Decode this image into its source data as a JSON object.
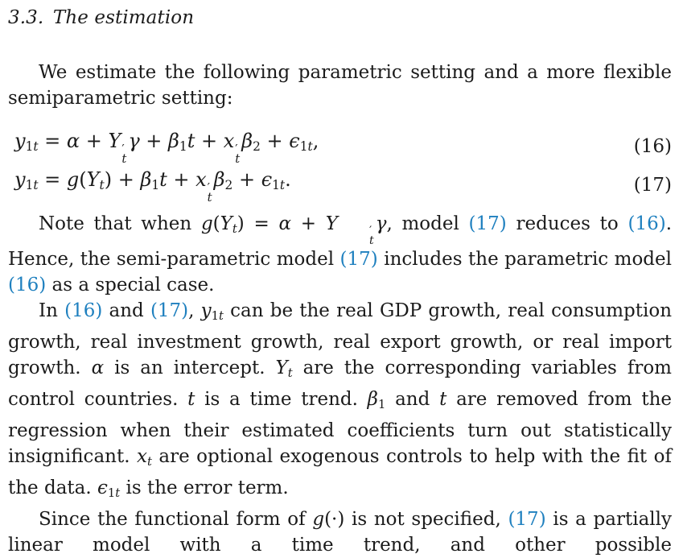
{
  "page": {
    "background": "#ffffff",
    "text_color": "#1b1b1b",
    "link_color": "#1f80bf"
  },
  "heading": "3.3. The estimation",
  "equations": [
    {
      "number": "(16)",
      "tokens": [
        {
          "k": "v",
          "t": "y"
        },
        {
          "k": "sub",
          "t": "1t"
        },
        {
          "k": "o",
          "t": " = "
        },
        {
          "k": "v",
          "t": "α"
        },
        {
          "k": "o",
          "t": " + "
        },
        {
          "k": "v",
          "t": "Y"
        },
        {
          "k": "ss",
          "sup": "′",
          "sub": "t"
        },
        {
          "k": "v",
          "t": "γ"
        },
        {
          "k": "o",
          "t": " + "
        },
        {
          "k": "v",
          "t": "β"
        },
        {
          "k": "sub",
          "t": "1"
        },
        {
          "k": "v",
          "t": "t"
        },
        {
          "k": "o",
          "t": " + "
        },
        {
          "k": "v",
          "t": "x"
        },
        {
          "k": "ss",
          "sup": "′",
          "sub": "t"
        },
        {
          "k": "v",
          "t": "β"
        },
        {
          "k": "sub",
          "t": "2"
        },
        {
          "k": "o",
          "t": " + "
        },
        {
          "k": "v",
          "t": "ϵ"
        },
        {
          "k": "sub",
          "t": "1t"
        },
        {
          "k": "o",
          "t": ","
        }
      ]
    },
    {
      "number": "(17)",
      "tokens": [
        {
          "k": "v",
          "t": "y"
        },
        {
          "k": "sub",
          "t": "1t"
        },
        {
          "k": "o",
          "t": " = "
        },
        {
          "k": "v",
          "t": "g"
        },
        {
          "k": "o",
          "t": "("
        },
        {
          "k": "v",
          "t": "Y"
        },
        {
          "k": "sub",
          "t": "t"
        },
        {
          "k": "o",
          "t": ")"
        },
        {
          "k": "o",
          "t": " + "
        },
        {
          "k": "v",
          "t": "β"
        },
        {
          "k": "sub",
          "t": "1"
        },
        {
          "k": "v",
          "t": "t"
        },
        {
          "k": "o",
          "t": " + "
        },
        {
          "k": "v",
          "t": "x"
        },
        {
          "k": "ss",
          "sup": "′",
          "sub": "t"
        },
        {
          "k": "v",
          "t": "β"
        },
        {
          "k": "sub",
          "t": "2"
        },
        {
          "k": "o",
          "t": " + "
        },
        {
          "k": "v",
          "t": "ϵ"
        },
        {
          "k": "sub",
          "t": "1t"
        },
        {
          "k": "o",
          "t": "."
        }
      ]
    }
  ],
  "paragraphs": {
    "p1": {
      "segments": [
        {
          "k": "text",
          "t": "We estimate the following parametric setting and a more flexible semiparametric setting:"
        }
      ]
    },
    "p2": {
      "segments": [
        {
          "k": "text",
          "t": "Note that when "
        },
        {
          "k": "math",
          "tokens": [
            {
              "k": "v",
              "t": "g"
            },
            {
              "k": "o",
              "t": "("
            },
            {
              "k": "v",
              "t": "Y"
            },
            {
              "k": "sub",
              "t": "t"
            },
            {
              "k": "o",
              "t": ")"
            },
            {
              "k": "o",
              "t": " = "
            },
            {
              "k": "v",
              "t": "α"
            },
            {
              "k": "o",
              "t": " + "
            },
            {
              "k": "v",
              "t": "Y"
            },
            {
              "k": "ss",
              "sup": "′",
              "sub": "t"
            },
            {
              "k": "v",
              "t": "γ"
            }
          ]
        },
        {
          "k": "text",
          "t": ", model "
        },
        {
          "k": "ref",
          "t": "(17)"
        },
        {
          "k": "text",
          "t": " reduces to "
        },
        {
          "k": "ref",
          "t": "(16)"
        },
        {
          "k": "text",
          "t": ". Hence, the semi-parametric model "
        },
        {
          "k": "ref",
          "t": "(17)"
        },
        {
          "k": "text",
          "t": " includes the parametric model "
        },
        {
          "k": "ref",
          "t": "(16)"
        },
        {
          "k": "text",
          "t": " as a special case."
        }
      ]
    },
    "p3": {
      "segments": [
        {
          "k": "text",
          "t": "In "
        },
        {
          "k": "ref",
          "t": "(16)"
        },
        {
          "k": "text",
          "t": " and "
        },
        {
          "k": "ref",
          "t": "(17)"
        },
        {
          "k": "text",
          "t": ", "
        },
        {
          "k": "math",
          "tokens": [
            {
              "k": "v",
              "t": "y"
            },
            {
              "k": "sub",
              "t": "1t"
            }
          ]
        },
        {
          "k": "text",
          "t": " can be the real GDP growth, real consumption growth, real investment growth, real export growth, or real import growth. "
        },
        {
          "k": "math",
          "tokens": [
            {
              "k": "v",
              "t": "α"
            }
          ]
        },
        {
          "k": "text",
          "t": " is an intercept. "
        },
        {
          "k": "math",
          "tokens": [
            {
              "k": "v",
              "t": "Y"
            },
            {
              "k": "sub",
              "t": "t"
            }
          ]
        },
        {
          "k": "text",
          "t": " are the corresponding variables from control countries. "
        },
        {
          "k": "math",
          "tokens": [
            {
              "k": "v",
              "t": "t"
            }
          ]
        },
        {
          "k": "text",
          "t": " is a time trend. "
        },
        {
          "k": "math",
          "tokens": [
            {
              "k": "v",
              "t": "β"
            },
            {
              "k": "sub",
              "t": "1"
            }
          ]
        },
        {
          "k": "text",
          "t": " and "
        },
        {
          "k": "math",
          "tokens": [
            {
              "k": "v",
              "t": "t"
            }
          ]
        },
        {
          "k": "text",
          "t": " are removed from the regression when their estimated coefficients turn out statistically insignificant. "
        },
        {
          "k": "math",
          "tokens": [
            {
              "k": "v",
              "t": "x"
            },
            {
              "k": "sub",
              "t": "t"
            }
          ]
        },
        {
          "k": "text",
          "t": " are optional exogenous controls to help with the fit of the data. "
        },
        {
          "k": "math",
          "tokens": [
            {
              "k": "v",
              "t": "ϵ"
            },
            {
              "k": "sub",
              "t": "1t"
            }
          ]
        },
        {
          "k": "text",
          "t": " is the error term."
        }
      ]
    },
    "p4": {
      "segments": [
        {
          "k": "text",
          "t": "Since the functional form of "
        },
        {
          "k": "math",
          "tokens": [
            {
              "k": "v",
              "t": "g"
            },
            {
              "k": "o",
              "t": "(·)"
            }
          ]
        },
        {
          "k": "text",
          "t": " is not specified, "
        },
        {
          "k": "ref",
          "t": "(17)"
        },
        {
          "k": "text",
          "t": " is a partially linear model with a time trend, and other possible"
        }
      ]
    }
  }
}
